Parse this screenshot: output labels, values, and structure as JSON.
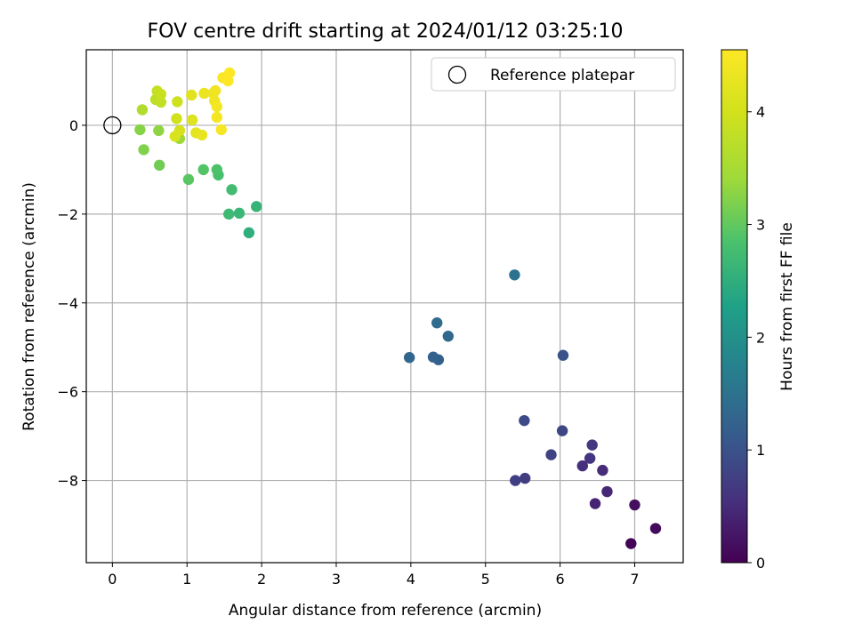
{
  "chart_data": {
    "type": "scatter",
    "title": "FOV centre drift starting at 2024/01/12 03:25:10",
    "xlabel": "Angular distance from reference (arcmin)",
    "ylabel": "Rotation from reference (arcmin)",
    "xlim": [
      -0.35,
      7.65
    ],
    "ylim": [
      -9.85,
      1.7
    ],
    "xticks": [
      0,
      1,
      2,
      3,
      4,
      5,
      6,
      7
    ],
    "yticks": [
      0,
      -2,
      -4,
      -6,
      -8
    ],
    "grid": true,
    "legend": {
      "placement": "top-right",
      "entries": [
        "Reference platepar"
      ]
    },
    "reference_point": {
      "x": 0,
      "y": 0
    },
    "colorbar": {
      "label": "Hours from first FF file",
      "range": [
        0,
        4.55
      ],
      "ticks": [
        0,
        1,
        2,
        3,
        4
      ],
      "colormap": "viridis"
    },
    "points": [
      {
        "x": 6.95,
        "y": -9.42,
        "c": 0.05
      },
      {
        "x": 7.28,
        "y": -9.08,
        "c": 0.1
      },
      {
        "x": 7.0,
        "y": -8.55,
        "c": 0.15
      },
      {
        "x": 6.47,
        "y": -8.52,
        "c": 0.4
      },
      {
        "x": 6.63,
        "y": -8.25,
        "c": 0.45
      },
      {
        "x": 6.57,
        "y": -7.77,
        "c": 0.5
      },
      {
        "x": 6.3,
        "y": -7.67,
        "c": 0.55
      },
      {
        "x": 6.4,
        "y": -7.5,
        "c": 0.6
      },
      {
        "x": 6.43,
        "y": -7.2,
        "c": 0.65
      },
      {
        "x": 5.53,
        "y": -7.95,
        "c": 0.7
      },
      {
        "x": 5.4,
        "y": -8.0,
        "c": 0.75
      },
      {
        "x": 5.88,
        "y": -7.42,
        "c": 0.8
      },
      {
        "x": 6.03,
        "y": -6.88,
        "c": 0.85
      },
      {
        "x": 5.52,
        "y": -6.65,
        "c": 0.9
      },
      {
        "x": 6.04,
        "y": -5.18,
        "c": 1.0
      },
      {
        "x": 4.37,
        "y": -5.28,
        "c": 1.2
      },
      {
        "x": 4.3,
        "y": -5.22,
        "c": 1.25
      },
      {
        "x": 3.98,
        "y": -5.23,
        "c": 1.3
      },
      {
        "x": 4.5,
        "y": -4.75,
        "c": 1.35
      },
      {
        "x": 4.35,
        "y": -4.45,
        "c": 1.4
      },
      {
        "x": 5.39,
        "y": -3.37,
        "c": 1.5
      },
      {
        "x": 1.83,
        "y": -2.42,
        "c": 2.5
      },
      {
        "x": 1.93,
        "y": -1.83,
        "c": 2.6
      },
      {
        "x": 1.7,
        "y": -1.98,
        "c": 2.65
      },
      {
        "x": 1.56,
        "y": -2.0,
        "c": 2.7
      },
      {
        "x": 1.6,
        "y": -1.45,
        "c": 2.75
      },
      {
        "x": 1.42,
        "y": -1.12,
        "c": 2.8
      },
      {
        "x": 1.4,
        "y": -1.0,
        "c": 2.85
      },
      {
        "x": 1.22,
        "y": -1.0,
        "c": 2.9
      },
      {
        "x": 1.02,
        "y": -1.22,
        "c": 2.95
      },
      {
        "x": 0.63,
        "y": -0.9,
        "c": 3.1
      },
      {
        "x": 0.42,
        "y": -0.55,
        "c": 3.2
      },
      {
        "x": 0.37,
        "y": -0.1,
        "c": 3.25
      },
      {
        "x": 0.62,
        "y": -0.12,
        "c": 3.3
      },
      {
        "x": 0.9,
        "y": -0.3,
        "c": 3.4
      },
      {
        "x": 0.4,
        "y": 0.35,
        "c": 3.6
      },
      {
        "x": 0.58,
        "y": 0.58,
        "c": 3.75
      },
      {
        "x": 0.65,
        "y": 0.52,
        "c": 3.8
      },
      {
        "x": 0.6,
        "y": 0.77,
        "c": 3.85
      },
      {
        "x": 0.65,
        "y": 0.7,
        "c": 3.9
      },
      {
        "x": 0.87,
        "y": 0.53,
        "c": 3.95
      },
      {
        "x": 0.86,
        "y": 0.15,
        "c": 4.0
      },
      {
        "x": 0.9,
        "y": -0.12,
        "c": 4.05
      },
      {
        "x": 0.84,
        "y": -0.25,
        "c": 4.1
      },
      {
        "x": 1.07,
        "y": 0.12,
        "c": 4.15
      },
      {
        "x": 1.06,
        "y": 0.68,
        "c": 4.2
      },
      {
        "x": 1.12,
        "y": -0.17,
        "c": 4.25
      },
      {
        "x": 1.2,
        "y": -0.22,
        "c": 4.3
      },
      {
        "x": 1.23,
        "y": 0.72,
        "c": 4.32
      },
      {
        "x": 1.35,
        "y": 0.72,
        "c": 4.35
      },
      {
        "x": 1.37,
        "y": 0.55,
        "c": 4.38
      },
      {
        "x": 1.38,
        "y": 0.78,
        "c": 4.4
      },
      {
        "x": 1.4,
        "y": 0.42,
        "c": 4.42
      },
      {
        "x": 1.4,
        "y": 0.18,
        "c": 4.45
      },
      {
        "x": 1.46,
        "y": -0.1,
        "c": 4.48
      },
      {
        "x": 1.48,
        "y": 1.07,
        "c": 4.5
      },
      {
        "x": 1.55,
        "y": 1.0,
        "c": 4.52
      },
      {
        "x": 1.57,
        "y": 1.18,
        "c": 4.55
      }
    ]
  }
}
